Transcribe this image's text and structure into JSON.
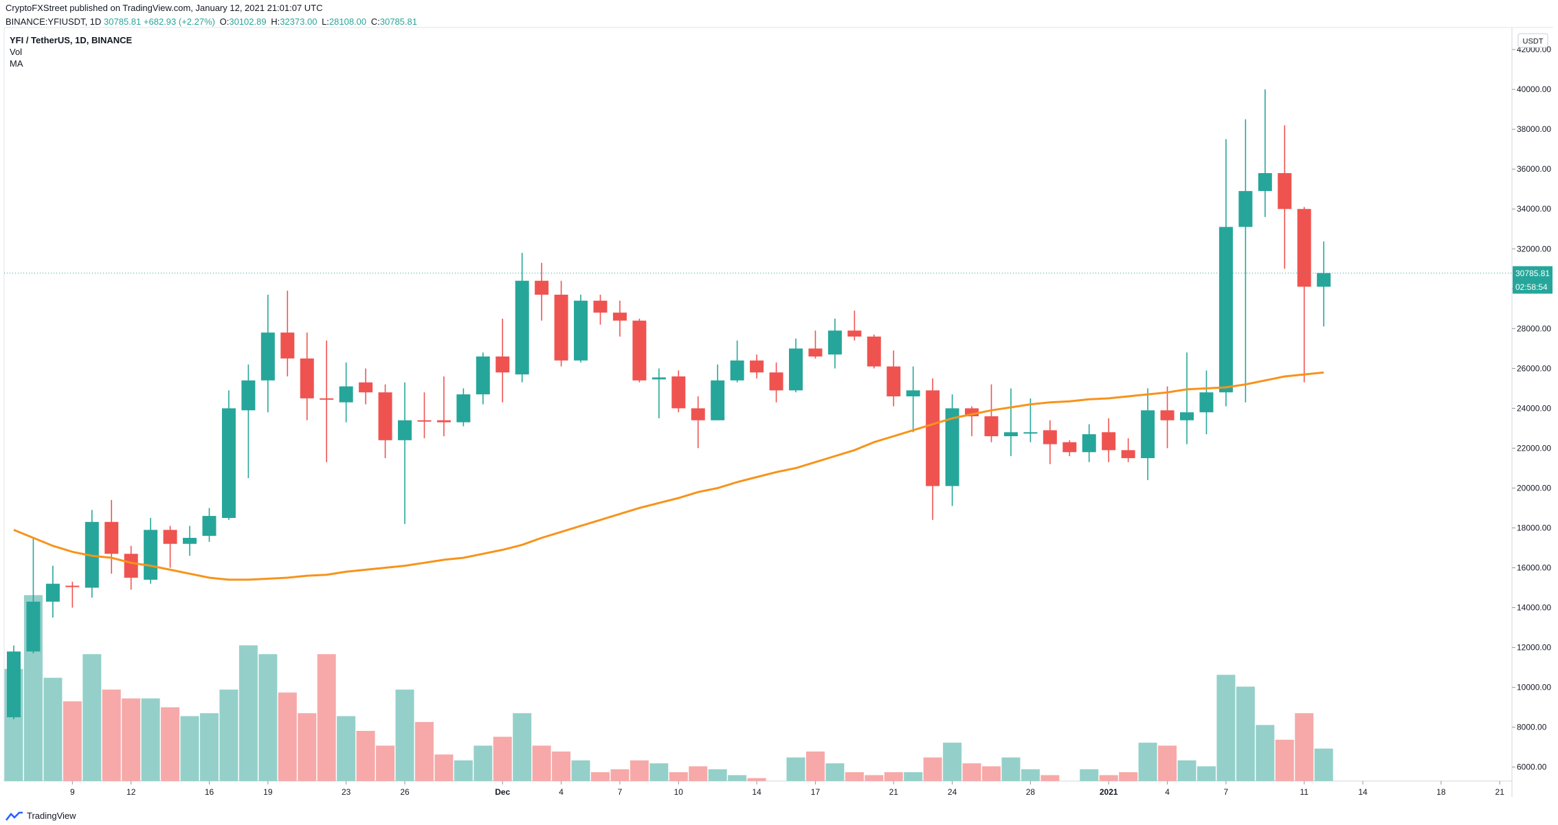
{
  "header": {
    "publish_line": "CryptoFXStreet published on TradingView.com, January 12, 2021 21:01:07 UTC",
    "symbol_prefix": "BINANCE:YFIUSDT, 1D",
    "last": "30785.81",
    "change": "+682.93 (+2.27%)",
    "o_label": "O:",
    "o": "30102.89",
    "h_label": "H:",
    "h": "32373.00",
    "l_label": "L:",
    "l": "28108.00",
    "c_label": "C:",
    "c": "30785.81"
  },
  "legend": {
    "title": "YFI / TetherUS, 1D, BINANCE",
    "vol": "Vol",
    "ma": "MA"
  },
  "footer": {
    "logo_text": "TradingView"
  },
  "colors": {
    "up": "#26a69a",
    "down": "#ef5350",
    "vol_up": "#94d0c9",
    "vol_down": "#f6a9a8",
    "ma": "#f7931a",
    "price_line": "#26a69a"
  },
  "chart_data": {
    "type": "candlestick",
    "currency": "USDT",
    "current_price_label": "30785.81",
    "countdown_label": "02:58:54",
    "y_ticks": [
      "6000.00",
      "8000.00",
      "10000.00",
      "12000.00",
      "14000.00",
      "16000.00",
      "18000.00",
      "20000.00",
      "22000.00",
      "24000.00",
      "26000.00",
      "28000.00",
      "30000.00",
      "32000.00",
      "34000.00",
      "36000.00",
      "38000.00",
      "40000.00",
      "42000.00"
    ],
    "ylim": [
      5300,
      42900
    ],
    "x_ticks": [
      {
        "i": 3,
        "label": "9"
      },
      {
        "i": 6,
        "label": "12"
      },
      {
        "i": 10,
        "label": "16"
      },
      {
        "i": 13,
        "label": "19"
      },
      {
        "i": 17,
        "label": "23"
      },
      {
        "i": 20,
        "label": "26"
      },
      {
        "i": 25,
        "label": "Dec"
      },
      {
        "i": 28,
        "label": "4"
      },
      {
        "i": 31,
        "label": "7"
      },
      {
        "i": 34,
        "label": "10"
      },
      {
        "i": 38,
        "label": "14"
      },
      {
        "i": 41,
        "label": "17"
      },
      {
        "i": 45,
        "label": "21"
      },
      {
        "i": 48,
        "label": "24"
      },
      {
        "i": 52,
        "label": "28"
      },
      {
        "i": 56,
        "label": "2021"
      },
      {
        "i": 59,
        "label": "4"
      },
      {
        "i": 62,
        "label": "7"
      },
      {
        "i": 66,
        "label": "11"
      },
      {
        "i": 69,
        "label": "14"
      },
      {
        "i": 73,
        "label": "18"
      },
      {
        "i": 76,
        "label": "21"
      }
    ],
    "candles": [
      {
        "o": 8500,
        "h": 12100,
        "l": 8400,
        "c": 11800
      },
      {
        "o": 11800,
        "h": 17500,
        "l": 11700,
        "c": 14300
      },
      {
        "o": 14300,
        "h": 16100,
        "l": 13500,
        "c": 15200
      },
      {
        "o": 15100,
        "h": 15300,
        "l": 14000,
        "c": 15050
      },
      {
        "o": 15000,
        "h": 18900,
        "l": 14500,
        "c": 18300
      },
      {
        "o": 18300,
        "h": 19400,
        "l": 15700,
        "c": 16700
      },
      {
        "o": 16700,
        "h": 17100,
        "l": 14900,
        "c": 15500
      },
      {
        "o": 15400,
        "h": 18500,
        "l": 15200,
        "c": 17900
      },
      {
        "o": 17900,
        "h": 18100,
        "l": 16000,
        "c": 17200
      },
      {
        "o": 17200,
        "h": 18100,
        "l": 16600,
        "c": 17500
      },
      {
        "o": 17600,
        "h": 19000,
        "l": 17300,
        "c": 18600
      },
      {
        "o": 18500,
        "h": 24900,
        "l": 18400,
        "c": 24000
      },
      {
        "o": 23900,
        "h": 26200,
        "l": 20500,
        "c": 25400
      },
      {
        "o": 25400,
        "h": 29700,
        "l": 23800,
        "c": 27800
      },
      {
        "o": 27800,
        "h": 29900,
        "l": 25600,
        "c": 26500
      },
      {
        "o": 26500,
        "h": 27800,
        "l": 23400,
        "c": 24500
      },
      {
        "o": 24500,
        "h": 27400,
        "l": 21300,
        "c": 24450
      },
      {
        "o": 24300,
        "h": 26300,
        "l": 23300,
        "c": 25100
      },
      {
        "o": 25300,
        "h": 26000,
        "l": 24200,
        "c": 24800
      },
      {
        "o": 24800,
        "h": 25200,
        "l": 21500,
        "c": 22400
      },
      {
        "o": 22400,
        "h": 25300,
        "l": 18200,
        "c": 23400
      },
      {
        "o": 23400,
        "h": 24800,
        "l": 22500,
        "c": 23350
      },
      {
        "o": 23400,
        "h": 25600,
        "l": 22600,
        "c": 23300
      },
      {
        "o": 23300,
        "h": 25000,
        "l": 23100,
        "c": 24700
      },
      {
        "o": 24700,
        "h": 26800,
        "l": 24200,
        "c": 26600
      },
      {
        "o": 26600,
        "h": 28500,
        "l": 24300,
        "c": 25800
      },
      {
        "o": 25700,
        "h": 31800,
        "l": 25300,
        "c": 30400
      },
      {
        "o": 30400,
        "h": 31300,
        "l": 28400,
        "c": 29700
      },
      {
        "o": 29700,
        "h": 30400,
        "l": 26100,
        "c": 26400
      },
      {
        "o": 26400,
        "h": 29700,
        "l": 26300,
        "c": 29400
      },
      {
        "o": 29400,
        "h": 29700,
        "l": 28200,
        "c": 28800
      },
      {
        "o": 28800,
        "h": 29400,
        "l": 27600,
        "c": 28400
      },
      {
        "o": 28400,
        "h": 28500,
        "l": 25300,
        "c": 25400
      },
      {
        "o": 25450,
        "h": 26000,
        "l": 23500,
        "c": 25550
      },
      {
        "o": 25600,
        "h": 25900,
        "l": 23800,
        "c": 24000
      },
      {
        "o": 24000,
        "h": 24600,
        "l": 22000,
        "c": 23400
      },
      {
        "o": 23400,
        "h": 26200,
        "l": 23400,
        "c": 25400
      },
      {
        "o": 25400,
        "h": 27400,
        "l": 25300,
        "c": 26400
      },
      {
        "o": 26400,
        "h": 26700,
        "l": 25500,
        "c": 25800
      },
      {
        "o": 25800,
        "h": 26300,
        "l": 24300,
        "c": 24900
      },
      {
        "o": 24900,
        "h": 27500,
        "l": 24800,
        "c": 27000
      },
      {
        "o": 27000,
        "h": 27900,
        "l": 26500,
        "c": 26600
      },
      {
        "o": 26700,
        "h": 28500,
        "l": 26000,
        "c": 27900
      },
      {
        "o": 27900,
        "h": 28900,
        "l": 27400,
        "c": 27600
      },
      {
        "o": 27600,
        "h": 27700,
        "l": 26000,
        "c": 26100
      },
      {
        "o": 26100,
        "h": 26900,
        "l": 24100,
        "c": 24600
      },
      {
        "o": 24600,
        "h": 26100,
        "l": 22800,
        "c": 24900
      },
      {
        "o": 24900,
        "h": 25500,
        "l": 18400,
        "c": 20100
      },
      {
        "o": 20100,
        "h": 24700,
        "l": 19100,
        "c": 24000
      },
      {
        "o": 24000,
        "h": 24100,
        "l": 22600,
        "c": 23600
      },
      {
        "o": 23600,
        "h": 25200,
        "l": 22300,
        "c": 22600
      },
      {
        "o": 22600,
        "h": 25000,
        "l": 21600,
        "c": 22800
      },
      {
        "o": 22750,
        "h": 24500,
        "l": 22300,
        "c": 22800
      },
      {
        "o": 22900,
        "h": 23400,
        "l": 21200,
        "c": 22200
      },
      {
        "o": 22300,
        "h": 22400,
        "l": 21600,
        "c": 21800
      },
      {
        "o": 21800,
        "h": 23200,
        "l": 21300,
        "c": 22700
      },
      {
        "o": 22800,
        "h": 23500,
        "l": 21300,
        "c": 21900
      },
      {
        "o": 21900,
        "h": 22500,
        "l": 21300,
        "c": 21500
      },
      {
        "o": 21500,
        "h": 25000,
        "l": 20400,
        "c": 23900
      },
      {
        "o": 23900,
        "h": 25100,
        "l": 22000,
        "c": 23400
      },
      {
        "o": 23400,
        "h": 26800,
        "l": 22200,
        "c": 23800
      },
      {
        "o": 23800,
        "h": 25900,
        "l": 22700,
        "c": 24800
      },
      {
        "o": 24800,
        "h": 37500,
        "l": 24100,
        "c": 33100
      },
      {
        "o": 33100,
        "h": 38500,
        "l": 24300,
        "c": 34900
      },
      {
        "o": 34900,
        "h": 40000,
        "l": 33600,
        "c": 35800
      },
      {
        "o": 35800,
        "h": 38200,
        "l": 31000,
        "c": 34000
      },
      {
        "o": 34000,
        "h": 34100,
        "l": 25300,
        "c": 30100
      },
      {
        "o": 30100,
        "h": 32373,
        "l": 28108,
        "c": 30785.81
      }
    ],
    "volume": {
      "ylim": [
        5600,
        31000
      ],
      "values": [
        9400,
        11900,
        9100,
        8300,
        9900,
        8700,
        8400,
        8400,
        8100,
        7800,
        7900,
        8700,
        10200,
        9900,
        8600,
        7900,
        9900,
        7800,
        7300,
        6800,
        8700,
        7600,
        6500,
        6300,
        6800,
        7100,
        7900,
        6800,
        6600,
        6300,
        5900,
        6000,
        6300,
        6200,
        5900,
        6100,
        6000,
        5800,
        5700,
        5600,
        6400,
        6600,
        6200,
        5900,
        5800,
        5900,
        5900,
        6400,
        6900,
        6200,
        6100,
        6400,
        6000,
        5800,
        5600,
        6000,
        5800,
        5900,
        6900,
        6800,
        6300,
        6100,
        9200,
        8800,
        7500,
        7000,
        7900,
        6700
      ]
    },
    "ma": {
      "values": [
        17900,
        17500,
        17100,
        16800,
        16600,
        16500,
        16250,
        16100,
        15900,
        15700,
        15500,
        15400,
        15400,
        15450,
        15500,
        15600,
        15650,
        15800,
        15900,
        16000,
        16100,
        16250,
        16400,
        16500,
        16700,
        16900,
        17150,
        17500,
        17800,
        18100,
        18400,
        18700,
        19000,
        19250,
        19500,
        19800,
        20000,
        20300,
        20550,
        20800,
        21000,
        21300,
        21600,
        21900,
        22300,
        22600,
        22900,
        23200,
        23500,
        23700,
        23900,
        24050,
        24200,
        24300,
        24350,
        24450,
        24500,
        24600,
        24700,
        24800,
        24950,
        25000,
        25050,
        25200,
        25400,
        25600,
        25700,
        25800
      ]
    }
  }
}
